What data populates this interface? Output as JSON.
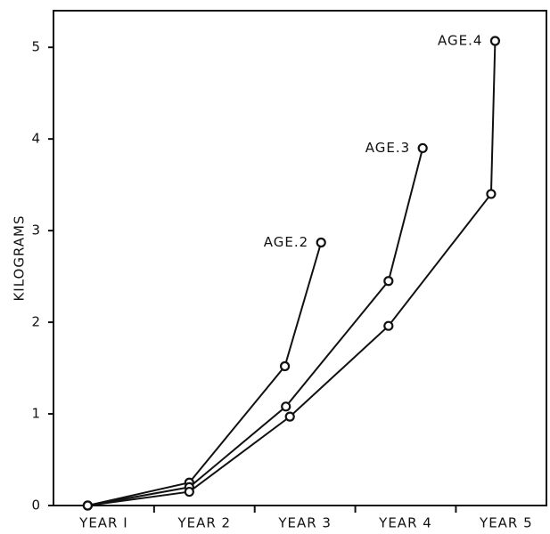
{
  "chart_data": {
    "type": "line",
    "y_label": "KILOGRAMS",
    "xlim": [
      0.5,
      5.4
    ],
    "xticks": [
      {
        "value": 1,
        "label": "YEAR I"
      },
      {
        "value": 2,
        "label": "YEAR 2"
      },
      {
        "value": 3,
        "label": "YEAR 3"
      },
      {
        "value": 4,
        "label": "YEAR 4"
      },
      {
        "value": 5,
        "label": "YEAR 5"
      }
    ],
    "ylim": [
      0,
      5.4
    ],
    "yticks": [
      0,
      1,
      2,
      3,
      4,
      5
    ],
    "series": [
      {
        "name": "AGE.2",
        "color": "#111111",
        "x": [
          0.84,
          1.85,
          2.8,
          3.16
        ],
        "values": [
          0,
          0.25,
          1.52,
          2.87
        ]
      },
      {
        "name": "AGE.3",
        "color": "#111111",
        "x": [
          0.84,
          1.85,
          2.81,
          3.83,
          4.17
        ],
        "values": [
          0,
          0.2,
          1.08,
          2.45,
          3.9
        ]
      },
      {
        "name": "AGE.4",
        "color": "#111111",
        "x": [
          0.84,
          1.85,
          2.85,
          3.83,
          4.85,
          4.89
        ],
        "values": [
          0,
          0.15,
          0.97,
          1.96,
          3.4,
          5.07
        ]
      }
    ]
  }
}
